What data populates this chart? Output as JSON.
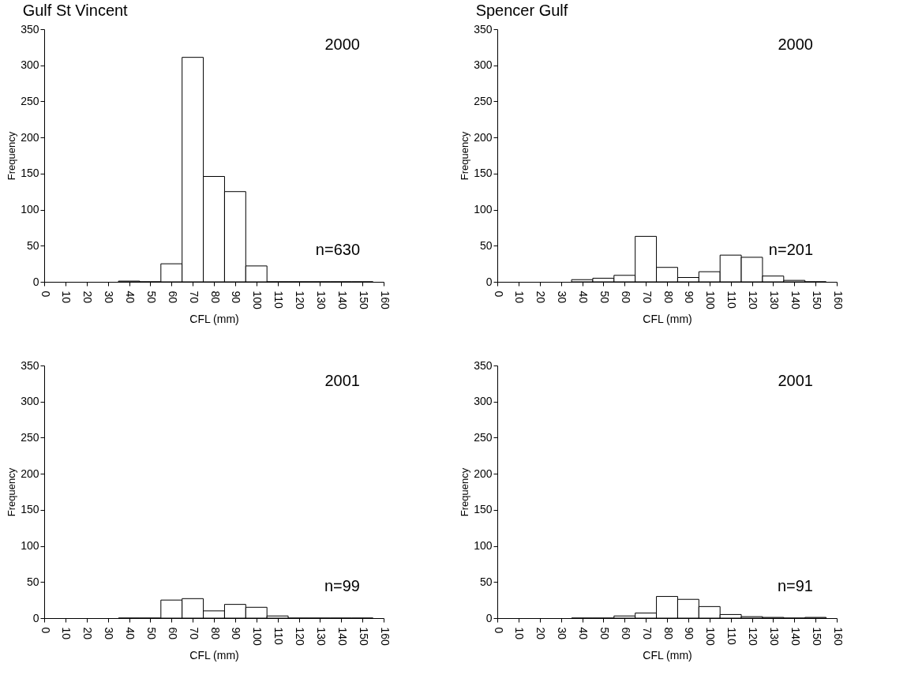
{
  "chart_data": [
    {
      "type": "histogram",
      "title": "Gulf St Vincent",
      "xlabel": "CFL (mm)",
      "ylabel": "Frequency",
      "annotations": [
        "2000",
        "n=630"
      ],
      "bins": [
        35,
        45,
        55,
        65,
        75,
        85,
        95,
        105,
        115,
        125,
        135,
        145,
        155
      ],
      "values": [
        1,
        0,
        25,
        311,
        146,
        125,
        22,
        0,
        0,
        0,
        0,
        0
      ],
      "color": "#ffffff",
      "xlim": [
        0,
        160
      ],
      "xticks": [
        0,
        10,
        20,
        30,
        40,
        50,
        60,
        70,
        80,
        90,
        100,
        110,
        120,
        130,
        140,
        150,
        160
      ],
      "ylim": [
        0,
        350
      ],
      "yticks": [
        0,
        50,
        100,
        150,
        200,
        250,
        300,
        350
      ]
    },
    {
      "type": "histogram",
      "title": "Spencer  Gulf",
      "xlabel": "CFL (mm)",
      "ylabel": "Frequency",
      "annotations": [
        "2000",
        "n=201"
      ],
      "bins": [
        35,
        45,
        55,
        65,
        75,
        85,
        95,
        105,
        115,
        125,
        135,
        145,
        155
      ],
      "values": [
        3,
        5,
        9,
        63,
        20,
        6,
        14,
        37,
        34,
        8,
        2,
        0
      ],
      "color": "#ffffff",
      "xlim": [
        0,
        160
      ],
      "xticks": [
        0,
        10,
        20,
        30,
        40,
        50,
        60,
        70,
        80,
        90,
        100,
        110,
        120,
        130,
        140,
        150,
        160
      ],
      "ylim": [
        0,
        350
      ],
      "yticks": [
        0,
        50,
        100,
        150,
        200,
        250,
        300,
        350
      ]
    },
    {
      "type": "histogram",
      "xlabel": "CFL (mm)",
      "ylabel": "Frequency",
      "annotations": [
        "2001",
        "n=99"
      ],
      "bins": [
        35,
        45,
        55,
        65,
        75,
        85,
        95,
        105,
        115,
        125,
        135,
        145,
        155
      ],
      "values": [
        0,
        0,
        25,
        27,
        10,
        19,
        15,
        3,
        0,
        0,
        0,
        0
      ],
      "color": "#ffffff",
      "xlim": [
        0,
        160
      ],
      "xticks": [
        0,
        10,
        20,
        30,
        40,
        50,
        60,
        70,
        80,
        90,
        100,
        110,
        120,
        130,
        140,
        150,
        160
      ],
      "ylim": [
        0,
        350
      ],
      "yticks": [
        0,
        50,
        100,
        150,
        200,
        250,
        300,
        350
      ]
    },
    {
      "type": "histogram",
      "xlabel": "CFL (mm)",
      "ylabel": "Frequency",
      "annotations": [
        "2001",
        "n=91"
      ],
      "bins": [
        35,
        45,
        55,
        65,
        75,
        85,
        95,
        105,
        115,
        125,
        135,
        145,
        155
      ],
      "values": [
        0,
        0,
        3,
        7,
        30,
        26,
        16,
        5,
        2,
        1,
        0,
        1
      ],
      "color": "#ffffff",
      "xlim": [
        0,
        160
      ],
      "xticks": [
        0,
        10,
        20,
        30,
        40,
        50,
        60,
        70,
        80,
        90,
        100,
        110,
        120,
        130,
        140,
        150,
        160
      ],
      "ylim": [
        0,
        350
      ],
      "yticks": [
        0,
        50,
        100,
        150,
        200,
        250,
        300,
        350
      ]
    }
  ]
}
